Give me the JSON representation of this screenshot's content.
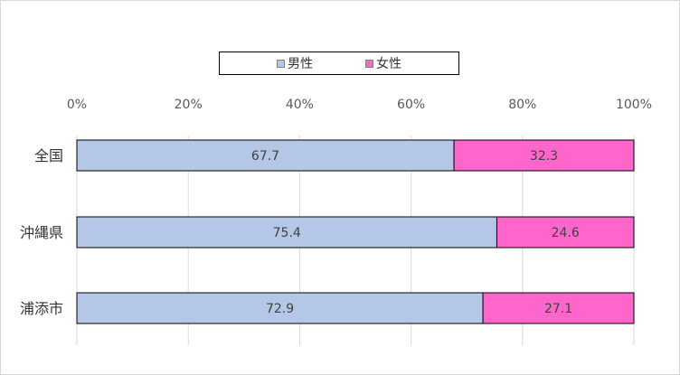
{
  "chart_data": {
    "type": "bar",
    "orientation": "horizontal",
    "stacked": "percent",
    "categories": [
      "全国",
      "沖縄県",
      "浦添市"
    ],
    "series": [
      {
        "name": "男性",
        "values": [
          67.7,
          75.4,
          72.9
        ],
        "color": "#b4c7e7"
      },
      {
        "name": "女性",
        "values": [
          32.3,
          24.6,
          27.1
        ],
        "color": "#ff66cc"
      }
    ],
    "x_ticks": [
      "0%",
      "20%",
      "40%",
      "60%",
      "80%",
      "100%"
    ],
    "xlim": [
      0,
      100
    ],
    "grid": true,
    "legend_position": "top"
  }
}
